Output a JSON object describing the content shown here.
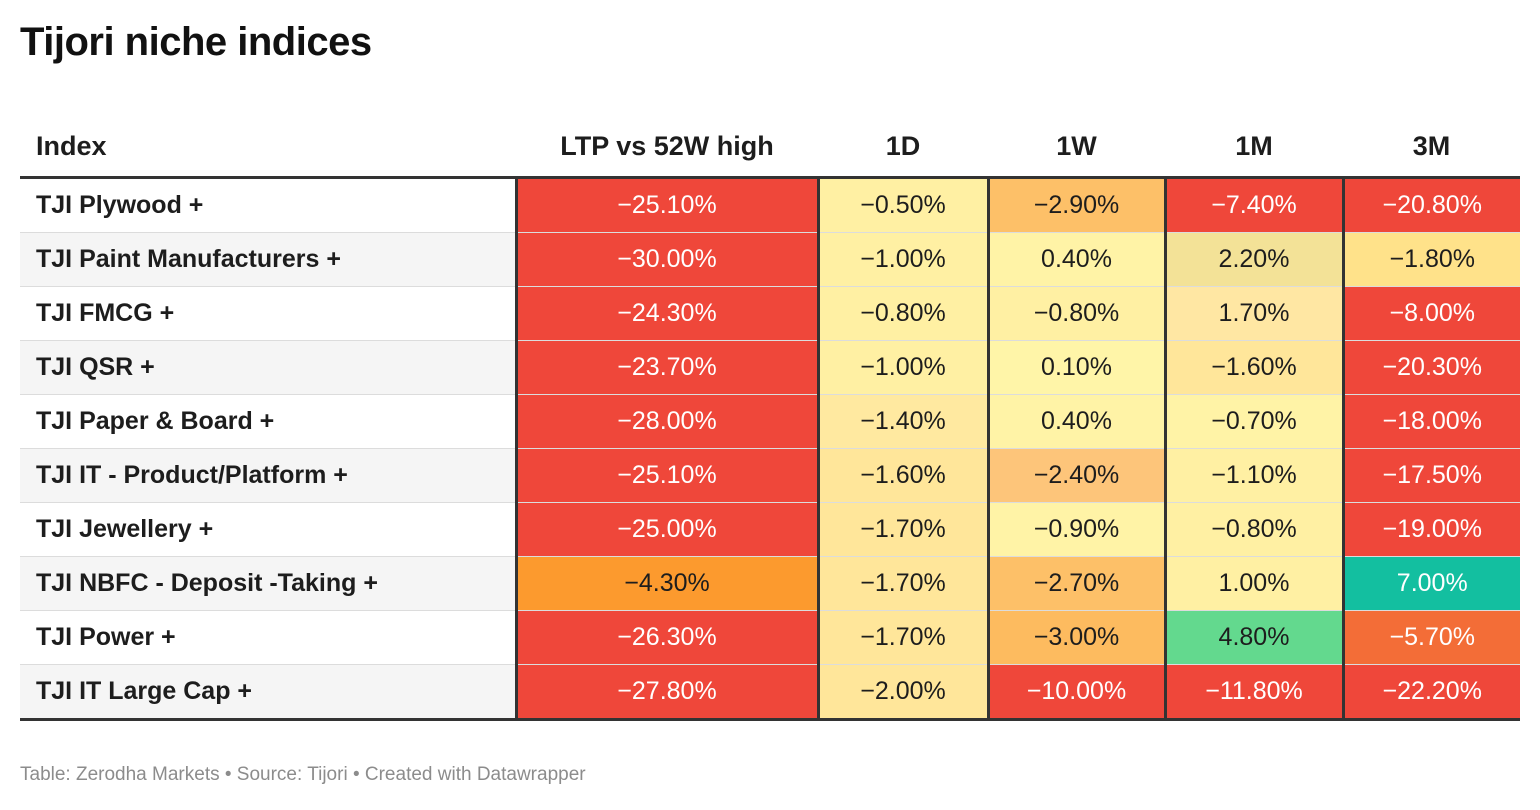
{
  "title": "Tijori niche indices",
  "footer": "Table: Zerodha Markets • Source: Tijori • Created with Datawrapper",
  "chart_data": {
    "type": "table",
    "title": "Tijori niche indices",
    "columns": [
      "Index",
      "LTP vs 52W high",
      "1D",
      "1W",
      "1M",
      "3M"
    ],
    "rows": [
      {
        "index": "TJI Plywood +",
        "values": [
          "−25.10%",
          "−0.50%",
          "−2.90%",
          "−7.40%",
          "−20.80%"
        ]
      },
      {
        "index": "TJI Paint Manufacturers +",
        "values": [
          "−30.00%",
          "−1.00%",
          "0.40%",
          "2.20%",
          "−1.80%"
        ]
      },
      {
        "index": "TJI FMCG +",
        "values": [
          "−24.30%",
          "−0.80%",
          "−0.80%",
          "1.70%",
          "−8.00%"
        ]
      },
      {
        "index": "TJI QSR +",
        "values": [
          "−23.70%",
          "−1.00%",
          "0.10%",
          "−1.60%",
          "−20.30%"
        ]
      },
      {
        "index": "TJI Paper & Board +",
        "values": [
          "−28.00%",
          "−1.40%",
          "0.40%",
          "−0.70%",
          "−18.00%"
        ]
      },
      {
        "index": "TJI IT - Product/Platform +",
        "values": [
          "−25.10%",
          "−1.60%",
          "−2.40%",
          "−1.10%",
          "−17.50%"
        ]
      },
      {
        "index": "TJI Jewellery +",
        "values": [
          "−25.00%",
          "−1.70%",
          "−0.90%",
          "−0.80%",
          "−19.00%"
        ]
      },
      {
        "index": "TJI NBFC - Deposit -Taking +",
        "values": [
          "−4.30%",
          "−1.70%",
          "−2.70%",
          "1.00%",
          "7.00%"
        ]
      },
      {
        "index": "TJI Power +",
        "values": [
          "−26.30%",
          "−1.70%",
          "−3.00%",
          "4.80%",
          "−5.70%"
        ]
      },
      {
        "index": "TJI IT Large Cap +",
        "values": [
          "−27.80%",
          "−2.00%",
          "−10.00%",
          "−11.80%",
          "−22.20%"
        ]
      }
    ],
    "cell_colors": [
      [
        "#ef473a",
        "#fff0a3",
        "#fdc068",
        "#ef473a",
        "#ef473a"
      ],
      [
        "#ef473a",
        "#fff0a3",
        "#fff3a6",
        "#f3e297",
        "#ffe28a"
      ],
      [
        "#ef473a",
        "#fff0a3",
        "#fff0a3",
        "#ffe7a3",
        "#ef473a"
      ],
      [
        "#ef473a",
        "#fff0a3",
        "#fff5a8",
        "#ffe69a",
        "#ef473a"
      ],
      [
        "#ef473a",
        "#ffe9a0",
        "#fff3a6",
        "#fff3a6",
        "#ef473a"
      ],
      [
        "#ef473a",
        "#ffe69a",
        "#fdc57a",
        "#fff0a3",
        "#ef473a"
      ],
      [
        "#ef473a",
        "#ffe69a",
        "#fff3a6",
        "#fff0a3",
        "#ef473a"
      ],
      [
        "#fc9a2e",
        "#ffe69a",
        "#fdc068",
        "#fff0a3",
        "#13bfa0"
      ],
      [
        "#ef473a",
        "#ffe69a",
        "#fdbb5f",
        "#63d98e",
        "#f36d37"
      ],
      [
        "#ef473a",
        "#ffe69a",
        "#ef473a",
        "#ef473a",
        "#ef473a"
      ]
    ],
    "cell_text_colors": [
      [
        "#ffffff",
        "#1d1d1d",
        "#1d1d1d",
        "#ffffff",
        "#ffffff"
      ],
      [
        "#ffffff",
        "#1d1d1d",
        "#1d1d1d",
        "#1d1d1d",
        "#1d1d1d"
      ],
      [
        "#ffffff",
        "#1d1d1d",
        "#1d1d1d",
        "#1d1d1d",
        "#ffffff"
      ],
      [
        "#ffffff",
        "#1d1d1d",
        "#1d1d1d",
        "#1d1d1d",
        "#ffffff"
      ],
      [
        "#ffffff",
        "#1d1d1d",
        "#1d1d1d",
        "#1d1d1d",
        "#ffffff"
      ],
      [
        "#ffffff",
        "#1d1d1d",
        "#1d1d1d",
        "#1d1d1d",
        "#ffffff"
      ],
      [
        "#ffffff",
        "#1d1d1d",
        "#1d1d1d",
        "#1d1d1d",
        "#ffffff"
      ],
      [
        "#1d1d1d",
        "#1d1d1d",
        "#1d1d1d",
        "#1d1d1d",
        "#ffffff"
      ],
      [
        "#ffffff",
        "#1d1d1d",
        "#1d1d1d",
        "#1d1d1d",
        "#ffffff"
      ],
      [
        "#ffffff",
        "#1d1d1d",
        "#ffffff",
        "#ffffff",
        "#ffffff"
      ]
    ]
  }
}
